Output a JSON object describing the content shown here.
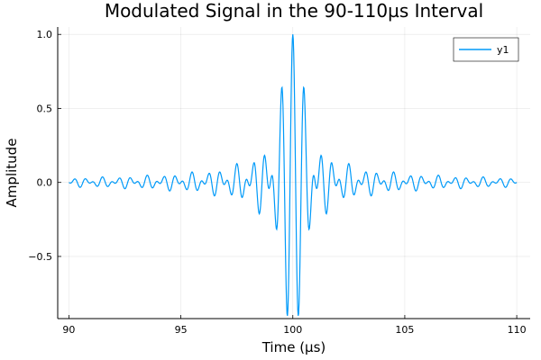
{
  "chart_data": {
    "type": "line",
    "title": "Modulated Signal in the 90-110µs Interval",
    "xlabel": "Time (µs)",
    "ylabel": "Amplitude",
    "xlim": [
      89.5,
      110.6
    ],
    "ylim": [
      -0.92,
      1.05
    ],
    "xticks": [
      90,
      95,
      100,
      105,
      110
    ],
    "xtick_labels": [
      "90",
      "95",
      "100",
      "105",
      "110"
    ],
    "yticks": [
      -0.5,
      0.0,
      0.5,
      1.0
    ],
    "ytick_labels": [
      "−0.5",
      "0.0",
      "0.5",
      "1.0"
    ],
    "grid": true,
    "legend_position": "top-right",
    "series": [
      {
        "name": "y1",
        "color": "#009af9",
        "x_range": [
          90,
          110
        ],
        "x_step": 0.02,
        "formula": "sinc(x - 100) * cos(2*pi*2*(x - 100))"
      }
    ]
  }
}
